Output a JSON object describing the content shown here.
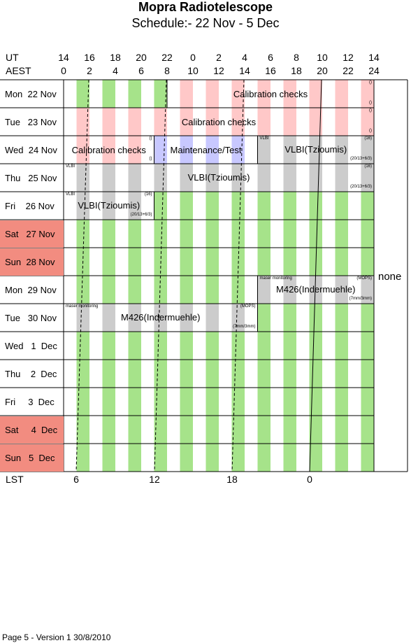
{
  "title": "Mopra Radiotelescope",
  "subtitle": "Schedule:- 22 Nov - 5  Dec",
  "header": {
    "ut_label": "UT",
    "aest_label": "AEST",
    "ut_hours": [
      "14",
      "16",
      "18",
      "20",
      "22",
      "0",
      "2",
      "4",
      "6",
      "8",
      "10",
      "12",
      "14"
    ],
    "aest_hours": [
      "0",
      "2",
      "4",
      "6",
      "8",
      "10",
      "12",
      "14",
      "16",
      "18",
      "20",
      "22",
      "24"
    ]
  },
  "days": [
    {
      "label": "Mon  22 Nov",
      "weekend": false
    },
    {
      "label": "Tue   23 Nov",
      "weekend": false
    },
    {
      "label": "Wed  24 Nov",
      "weekend": false
    },
    {
      "label": "Thu   25 Nov",
      "weekend": false
    },
    {
      "label": "Fri    26 Nov",
      "weekend": false
    },
    {
      "label": "Sat   27 Nov",
      "weekend": true
    },
    {
      "label": "Sun  28 Nov",
      "weekend": true
    },
    {
      "label": "Mon  29 Nov",
      "weekend": false
    },
    {
      "label": "Tue   30 Nov",
      "weekend": false
    },
    {
      "label": "Wed   1  Dec",
      "weekend": false
    },
    {
      "label": "Thu    2  Dec",
      "weekend": false
    },
    {
      "label": "Fri     3  Dec",
      "weekend": false
    },
    {
      "label": "Sat     4  Dec",
      "weekend": true
    },
    {
      "label": "Sun   5  Dec",
      "weekend": true
    }
  ],
  "blocks": [
    {
      "row": 0,
      "start": 8,
      "end": 24,
      "title": "Calibration checks",
      "stripe": "pink",
      "tr": "()",
      "br": "()"
    },
    {
      "row": 1,
      "start": 0,
      "end": 24,
      "title": "Calibration checks",
      "stripe": "pink",
      "tr": "()",
      "br": "()"
    },
    {
      "row": 2,
      "start": 0,
      "end": 7,
      "title": "Calibration checks",
      "stripe": "pink",
      "tr": "()",
      "br": "()"
    },
    {
      "row": 2,
      "start": 7,
      "end": 15,
      "title": "Maintenance/Test",
      "stripe": "blue"
    },
    {
      "row": 2,
      "start": 15,
      "end": 24,
      "title": "VLBI(Tzioumis)",
      "stripe": "gray",
      "tl": "VLBI",
      "tr": "(16)",
      "br": "(20/13+6/3)"
    },
    {
      "row": 3,
      "start": 0,
      "end": 24,
      "title": "VLBI(Tzioumis)",
      "stripe": "gray",
      "tl": "VLBI",
      "tr": "(16)",
      "br": "(20/13+6/3)"
    },
    {
      "row": 4,
      "start": 0,
      "end": 7,
      "title": "VLBI(Tzioumis)",
      "stripe": "gray",
      "tl": "VLBI",
      "tr": "(16)",
      "br": "(20/13+6/3)"
    },
    {
      "row": 7,
      "start": 15,
      "end": 24,
      "title": "M426(Indermuehle)",
      "stripe": "gray",
      "tl": "maser monitoring",
      "tr": "(MOPS)",
      "br": "(7mm/3mm)"
    },
    {
      "row": 8,
      "start": 0,
      "end": 15,
      "title": "M426(Indermuehle)",
      "stripe": "gray",
      "tl": "maser monitoring",
      "tr": "(MOPS)",
      "br": "(7mm/3mm)"
    }
  ],
  "none_label": "none",
  "lst": {
    "label": "LST",
    "values": [
      "6",
      "12",
      "18",
      "0"
    ]
  },
  "footer": "Page 5 - Version 1  30/8/2010",
  "colors": {
    "green": "#a6e38a",
    "pink": "#ffc8c8",
    "blue": "#c8c8ff",
    "gray": "#cccccc",
    "weekend": "#f28c80"
  }
}
